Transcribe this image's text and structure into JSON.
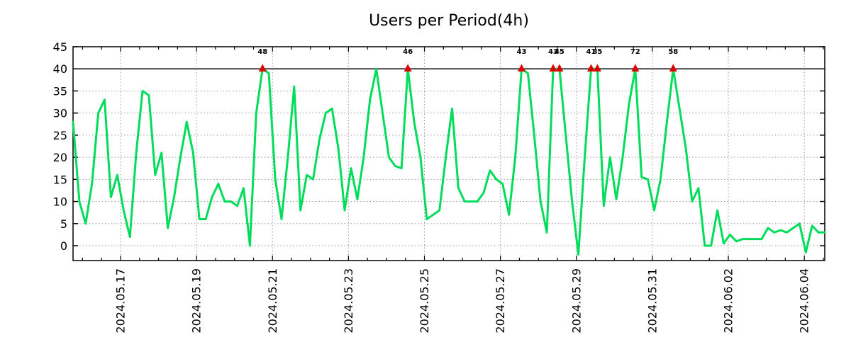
{
  "chart_data": {
    "type": "line",
    "title": "Users per Period(4h)",
    "period": "4h",
    "clip_threshold": 40,
    "ylim": [
      -3.4,
      45
    ],
    "y_ticks": [
      0,
      5,
      10,
      15,
      20,
      25,
      30,
      35,
      40,
      45
    ],
    "x_tick_labels": [
      "2024.05.17",
      "2024.05.19",
      "2024.05.21",
      "2024.05.23",
      "2024.05.25",
      "2024.05.27",
      "2024.05.29",
      "2024.05.31",
      "2024.06.02",
      "2024.06.04"
    ],
    "grid": "dotted, vertical at every 2 days, horizontal every 5 units; solid black line at y=40",
    "legend_position": "none",
    "series_name": "users",
    "values": [
      28,
      10,
      5,
      14,
      30,
      33,
      11,
      16,
      8,
      2,
      21,
      35,
      34,
      16,
      21,
      4,
      11,
      20,
      28,
      21,
      6,
      6,
      11,
      14,
      10,
      10,
      9,
      13,
      0,
      30,
      48,
      39,
      15,
      6,
      20,
      36,
      8,
      16,
      15,
      24,
      30,
      31,
      22,
      8,
      17.5,
      10.5,
      20,
      33,
      40,
      30,
      20,
      18,
      17.5,
      46,
      28,
      20,
      6,
      7,
      8,
      20,
      31,
      13,
      10,
      10,
      10,
      12,
      17,
      15,
      14,
      7,
      20,
      43,
      39,
      25,
      10,
      3,
      43,
      45,
      25,
      10,
      -2,
      20,
      41,
      85,
      9,
      20,
      10.5,
      20,
      32,
      72,
      15.5,
      15,
      8,
      15,
      28,
      58,
      31,
      22,
      10,
      13,
      0,
      0,
      8,
      0.5,
      2.5,
      1,
      1.5,
      1.5,
      1.5,
      1.5,
      4,
      3,
      3.5,
      3,
      4,
      5,
      -1.5,
      4.5,
      3,
      3
    ],
    "peak_annotations": [
      {
        "label": "48"
      },
      {
        "label": "46"
      },
      {
        "label": "43"
      },
      {
        "label": "43"
      },
      {
        "label": "45"
      },
      {
        "label": "41"
      },
      {
        "label": "85"
      },
      {
        "label": "72"
      },
      {
        "label": "58"
      }
    ],
    "annotation_note": "values above 40 are clipped at 40 and flagged with a red triangle marker plus the true value printed in green above",
    "colors": {
      "line": "#00dd5a",
      "marker": "#dd0000",
      "annotation": "#00cc55",
      "grid": "#9a9a9a",
      "axis": "#000000",
      "background": "#ffffff"
    }
  }
}
